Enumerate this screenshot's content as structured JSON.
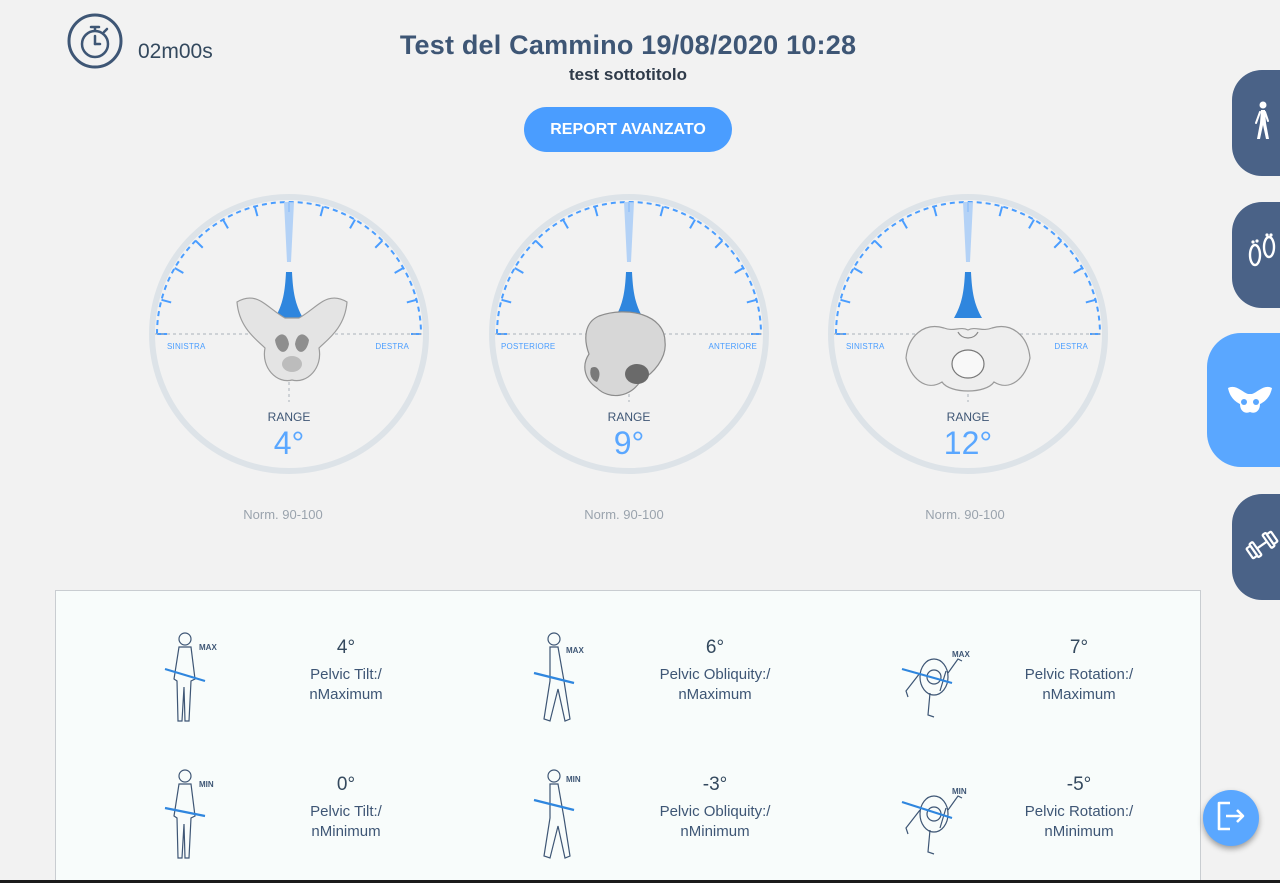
{
  "timer": {
    "icon": "stopwatch-icon",
    "label": "02m00s"
  },
  "header": {
    "title": "Test del Cammino 19/08/2020 10:28",
    "subtitle": "test sottotitolo"
  },
  "report_button": {
    "label": "REPORT AVANZATO"
  },
  "gauges": [
    {
      "left_label": "SINISTRA",
      "right_label": "DESTRA",
      "range_label": "RANGE",
      "range_value": "4°",
      "norm": "Norm. 90-100",
      "image": "pelvis-front-view"
    },
    {
      "left_label": "POSTERIORE",
      "right_label": "ANTERIORE",
      "range_label": "RANGE",
      "range_value": "9°",
      "norm": "Norm. 90-100",
      "image": "pelvis-side-view"
    },
    {
      "left_label": "SINISTRA",
      "right_label": "DESTRA",
      "range_label": "RANGE",
      "range_value": "12°",
      "norm": "Norm. 90-100",
      "image": "pelvis-top-view"
    }
  ],
  "metrics": [
    {
      "value": "4°",
      "label_line1": "Pelvic Tilt:/",
      "label_line2": "nMaximum",
      "badge": "MAX",
      "figure": "front-figure-icon"
    },
    {
      "value": "6°",
      "label_line1": "Pelvic Obliquity:/",
      "label_line2": "nMaximum",
      "badge": "MAX",
      "figure": "side-figure-icon"
    },
    {
      "value": "7°",
      "label_line1": "Pelvic Rotation:/",
      "label_line2": "nMaximum",
      "badge": "MAX",
      "figure": "top-figure-icon"
    },
    {
      "value": "0°",
      "label_line1": "Pelvic Tilt:/",
      "label_line2": "nMinimum",
      "badge": "MIN",
      "figure": "front-figure-icon"
    },
    {
      "value": "-3°",
      "label_line1": "Pelvic Obliquity:/",
      "label_line2": "nMinimum",
      "badge": "MIN",
      "figure": "side-figure-icon"
    },
    {
      "value": "-5°",
      "label_line1": "Pelvic Rotation:/",
      "label_line2": "nMinimum",
      "badge": "MIN",
      "figure": "top-figure-icon"
    }
  ],
  "side_tabs": [
    {
      "icon": "walking-person-icon",
      "active": false
    },
    {
      "icon": "footprints-icon",
      "active": false
    },
    {
      "icon": "pelvis-icon",
      "active": true
    },
    {
      "icon": "dumbbell-icon",
      "active": false
    }
  ],
  "exit_button": {
    "icon": "exit-icon"
  },
  "colors": {
    "accent": "#4a9dff",
    "tab": "#4a6287",
    "title": "#3e5675"
  }
}
